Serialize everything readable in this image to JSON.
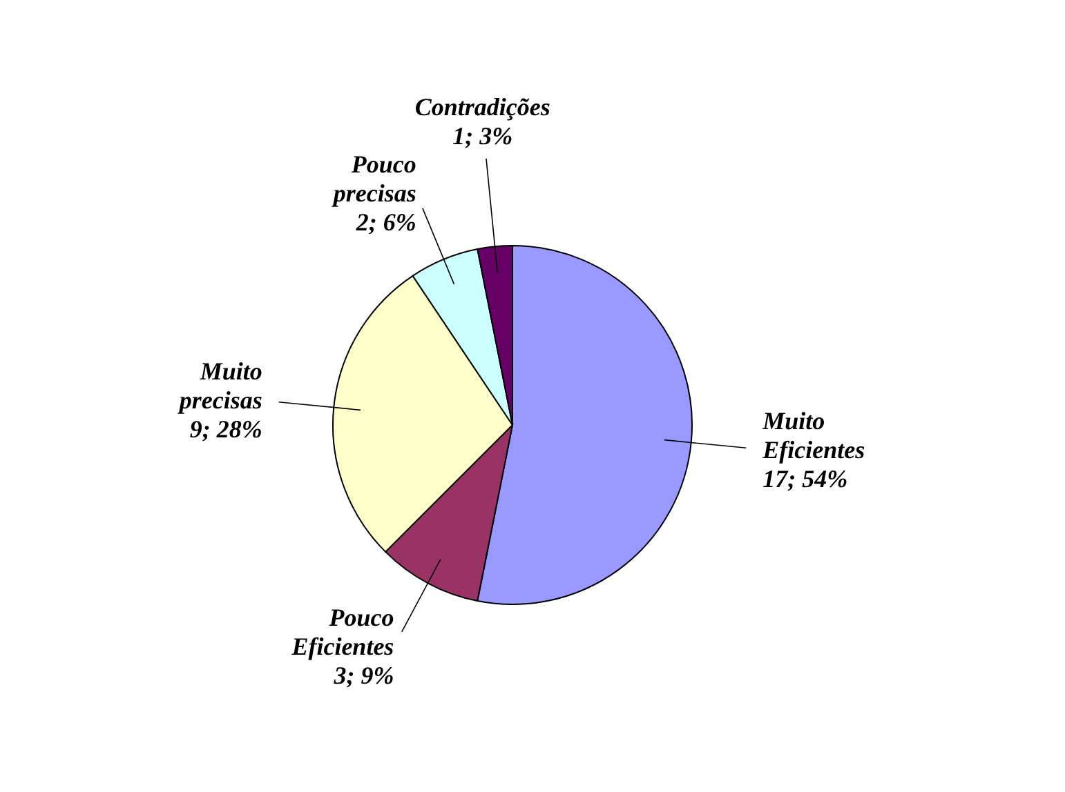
{
  "chart_data": {
    "type": "pie",
    "categories": [
      "Muito Eficientes",
      "Pouco Eficientes",
      "Muito precisas",
      "Pouco precisas",
      "Contradições"
    ],
    "values": [
      17,
      3,
      9,
      2,
      1
    ],
    "colors": [
      "#9999ff",
      "#993366",
      "#ffffcc",
      "#ccffff",
      "#660066"
    ],
    "value_labels": [
      "17; 54%",
      "3; 9%",
      "9; 28%",
      "2; 6%",
      "1; 3%"
    ]
  }
}
